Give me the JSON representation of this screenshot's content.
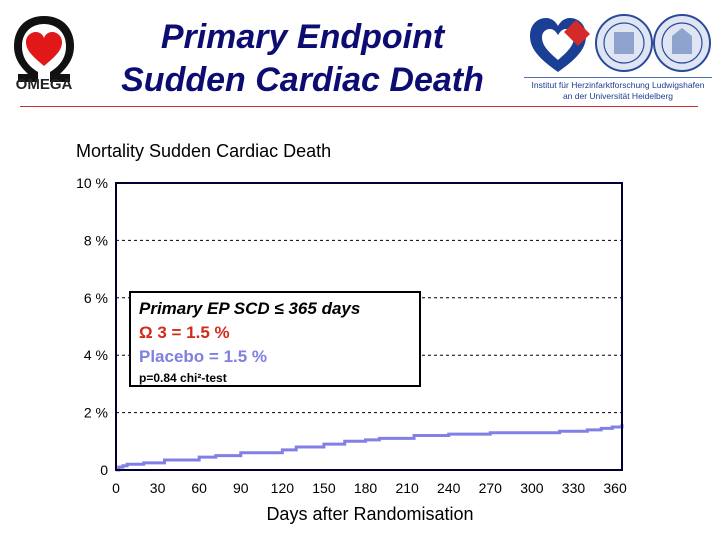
{
  "slide": {
    "title_line1": "Primary Endpoint",
    "title_line2": "Sudden Cardiac Death",
    "logo_left_text": "OMEGA",
    "institute_line1": "Institut für Herzinfarktforschung Ludwigshafen",
    "institute_line2": "an der Universität Heidelberg"
  },
  "colors": {
    "title": "#0c0c72",
    "rule": "#c83232",
    "line": "#8080e6",
    "omega3": "#d42a1a",
    "placebo": "#7f7fe0"
  },
  "chart_data": {
    "type": "line",
    "title": "Mortality Sudden Cardiac Death",
    "xlabel": "Days after Randomisation",
    "ylabel": "",
    "xlim": [
      0,
      365
    ],
    "ylim": [
      0,
      10
    ],
    "xticks": [
      "0",
      "30",
      "60",
      "90",
      "120",
      "150",
      "180",
      "210",
      "240",
      "270",
      "300",
      "330",
      "360"
    ],
    "yticks": [
      "0",
      "2 %",
      "4 %",
      "6 %",
      "8 %",
      "10 %"
    ],
    "grid": "horizontal dashed",
    "x": [
      0,
      2,
      5,
      8,
      20,
      35,
      60,
      72,
      90,
      120,
      130,
      150,
      165,
      180,
      190,
      215,
      240,
      270,
      295,
      320,
      340,
      350,
      358,
      365
    ],
    "y": [
      0.0,
      0.1,
      0.15,
      0.2,
      0.25,
      0.35,
      0.45,
      0.5,
      0.6,
      0.7,
      0.8,
      0.9,
      1.0,
      1.05,
      1.1,
      1.2,
      1.25,
      1.3,
      1.3,
      1.35,
      1.4,
      1.45,
      1.5,
      1.6
    ],
    "annotation": {
      "line1": "Primary EP SCD ≤ 365 days",
      "line2": "Ω 3 = 1.5 %",
      "line3": "Placebo = 1.5 %",
      "line4": "p=0.84   chi²-test"
    }
  }
}
